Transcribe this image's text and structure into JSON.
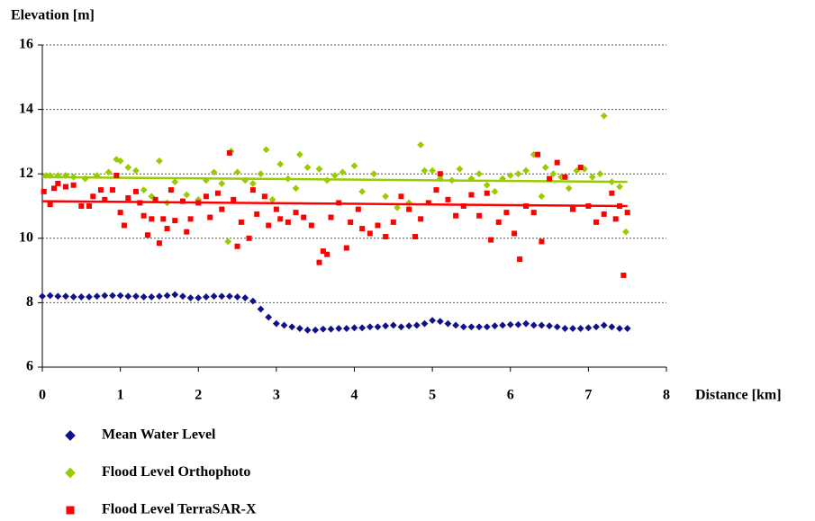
{
  "chart_data": {
    "type": "scatter",
    "y_label": "Elevation [m]",
    "x_label": "Distance [km]",
    "xlim": [
      0,
      8
    ],
    "xticks": [
      0,
      1,
      2,
      3,
      4,
      5,
      6,
      7,
      8
    ],
    "ylim": [
      6,
      16
    ],
    "yticks": [
      6,
      8,
      10,
      12,
      14,
      16
    ],
    "grid": true,
    "legend": "bottom",
    "series": [
      {
        "name": "Mean Water Level",
        "color": "#10108a",
        "marker": "diamond",
        "x": [
          0,
          0.1,
          0.2,
          0.3,
          0.4,
          0.5,
          0.6,
          0.7,
          0.8,
          0.9,
          1,
          1.1,
          1.2,
          1.3,
          1.4,
          1.5,
          1.6,
          1.7,
          1.8,
          1.9,
          2,
          2.1,
          2.2,
          2.3,
          2.4,
          2.5,
          2.6,
          2.7,
          2.8,
          2.9,
          3,
          3.1,
          3.2,
          3.3,
          3.4,
          3.5,
          3.6,
          3.7,
          3.8,
          3.9,
          4,
          4.1,
          4.2,
          4.3,
          4.4,
          4.5,
          4.6,
          4.7,
          4.8,
          4.9,
          5,
          5.1,
          5.2,
          5.3,
          5.4,
          5.5,
          5.6,
          5.7,
          5.8,
          5.9,
          6,
          6.1,
          6.2,
          6.3,
          6.4,
          6.5,
          6.6,
          6.7,
          6.8,
          6.9,
          7,
          7.1,
          7.2,
          7.3,
          7.4,
          7.5
        ],
        "values": [
          8.2,
          8.22,
          8.2,
          8.2,
          8.18,
          8.18,
          8.18,
          8.2,
          8.22,
          8.22,
          8.22,
          8.2,
          8.2,
          8.18,
          8.18,
          8.2,
          8.22,
          8.25,
          8.2,
          8.15,
          8.15,
          8.18,
          8.2,
          8.2,
          8.2,
          8.18,
          8.15,
          8.05,
          7.8,
          7.55,
          7.35,
          7.3,
          7.25,
          7.2,
          7.15,
          7.15,
          7.18,
          7.18,
          7.2,
          7.2,
          7.22,
          7.22,
          7.25,
          7.25,
          7.28,
          7.3,
          7.25,
          7.28,
          7.3,
          7.35,
          7.45,
          7.42,
          7.35,
          7.3,
          7.25,
          7.25,
          7.25,
          7.25,
          7.28,
          7.3,
          7.32,
          7.32,
          7.35,
          7.3,
          7.3,
          7.28,
          7.25,
          7.2,
          7.2,
          7.2,
          7.22,
          7.25,
          7.3,
          7.25,
          7.2,
          7.2
        ]
      },
      {
        "name": "Flood Level Orthophoto",
        "color": "#99cc00",
        "marker": "diamond",
        "x": [
          0.05,
          0.1,
          0.2,
          0.3,
          0.4,
          0.55,
          0.7,
          0.85,
          0.95,
          1.0,
          1.1,
          1.2,
          1.3,
          1.4,
          1.5,
          1.6,
          1.7,
          1.85,
          2.0,
          2.1,
          2.2,
          2.3,
          2.38,
          2.42,
          2.5,
          2.6,
          2.7,
          2.8,
          2.87,
          2.95,
          3.05,
          3.15,
          3.25,
          3.3,
          3.4,
          3.55,
          3.65,
          3.75,
          3.85,
          4.0,
          4.1,
          4.25,
          4.4,
          4.55,
          4.7,
          4.85,
          4.9,
          5.0,
          5.1,
          5.25,
          5.35,
          5.5,
          5.6,
          5.7,
          5.8,
          5.9,
          6.0,
          6.1,
          6.2,
          6.3,
          6.4,
          6.45,
          6.55,
          6.65,
          6.75,
          6.85,
          6.95,
          7.05,
          7.15,
          7.2,
          7.3,
          7.4,
          7.48
        ],
        "values": [
          11.95,
          11.95,
          11.95,
          11.95,
          11.9,
          11.85,
          11.95,
          12.05,
          12.45,
          12.4,
          12.2,
          12.1,
          11.5,
          11.3,
          12.4,
          11.1,
          11.75,
          11.35,
          11.2,
          11.8,
          12.05,
          11.7,
          9.9,
          12.7,
          12.05,
          11.8,
          11.7,
          12.0,
          12.75,
          11.2,
          12.3,
          11.85,
          11.55,
          12.6,
          12.2,
          12.15,
          11.8,
          11.95,
          12.05,
          12.25,
          11.45,
          12.0,
          11.3,
          10.95,
          11.1,
          12.9,
          12.1,
          12.1,
          11.85,
          11.8,
          12.15,
          11.85,
          12.0,
          11.65,
          11.45,
          11.85,
          11.95,
          12.0,
          12.1,
          12.6,
          11.3,
          12.2,
          12.0,
          11.9,
          11.55,
          12.1,
          12.15,
          11.9,
          12.0,
          13.8,
          11.75,
          11.6,
          10.2
        ],
        "trendline": {
          "x": [
            0,
            7.5
          ],
          "values": [
            11.9,
            11.75
          ]
        }
      },
      {
        "name": "Flood Level TerraSAR-X",
        "color": "#ff0000",
        "marker": "square",
        "x": [
          0.02,
          0.1,
          0.15,
          0.2,
          0.3,
          0.4,
          0.5,
          0.6,
          0.65,
          0.75,
          0.8,
          0.9,
          0.95,
          1.0,
          1.05,
          1.1,
          1.2,
          1.25,
          1.3,
          1.35,
          1.4,
          1.45,
          1.5,
          1.55,
          1.6,
          1.65,
          1.7,
          1.8,
          1.85,
          1.9,
          2.0,
          2.1,
          2.15,
          2.25,
          2.3,
          2.4,
          2.45,
          2.5,
          2.55,
          2.65,
          2.7,
          2.75,
          2.85,
          2.9,
          3.0,
          3.05,
          3.15,
          3.25,
          3.35,
          3.45,
          3.55,
          3.6,
          3.65,
          3.7,
          3.8,
          3.9,
          3.95,
          4.05,
          4.1,
          4.2,
          4.3,
          4.4,
          4.5,
          4.6,
          4.7,
          4.78,
          4.85,
          4.95,
          5.05,
          5.1,
          5.2,
          5.3,
          5.4,
          5.5,
          5.6,
          5.7,
          5.75,
          5.85,
          5.95,
          6.05,
          6.12,
          6.2,
          6.3,
          6.35,
          6.4,
          6.5,
          6.6,
          6.7,
          6.8,
          6.9,
          7.0,
          7.1,
          7.2,
          7.3,
          7.35,
          7.4,
          7.45,
          7.5
        ],
        "values": [
          11.45,
          11.05,
          11.55,
          11.7,
          11.6,
          11.65,
          11.0,
          11.0,
          11.3,
          11.5,
          11.2,
          11.5,
          11.95,
          10.8,
          10.4,
          11.25,
          11.45,
          11.1,
          10.7,
          10.1,
          10.6,
          11.2,
          9.85,
          10.6,
          10.3,
          11.5,
          10.55,
          11.15,
          10.2,
          10.6,
          11.1,
          11.3,
          10.65,
          11.4,
          10.9,
          12.65,
          11.2,
          9.75,
          10.5,
          10.0,
          11.5,
          10.75,
          11.3,
          10.4,
          10.9,
          10.6,
          10.5,
          10.8,
          10.65,
          10.4,
          9.25,
          9.6,
          9.5,
          10.65,
          11.1,
          9.7,
          10.5,
          10.9,
          10.3,
          10.15,
          10.4,
          10.05,
          10.5,
          11.3,
          10.9,
          10.05,
          10.6,
          11.1,
          11.5,
          12.0,
          11.2,
          10.7,
          11.0,
          11.35,
          10.7,
          11.4,
          9.95,
          10.5,
          10.8,
          10.15,
          9.35,
          11.0,
          10.8,
          12.6,
          9.9,
          11.85,
          12.35,
          11.9,
          10.9,
          12.2,
          11.0,
          10.5,
          10.75,
          11.4,
          10.6,
          11.0,
          8.85,
          10.8
        ],
        "trendline": {
          "x": [
            0,
            7.5
          ],
          "values": [
            11.15,
            11.0
          ]
        }
      }
    ]
  }
}
